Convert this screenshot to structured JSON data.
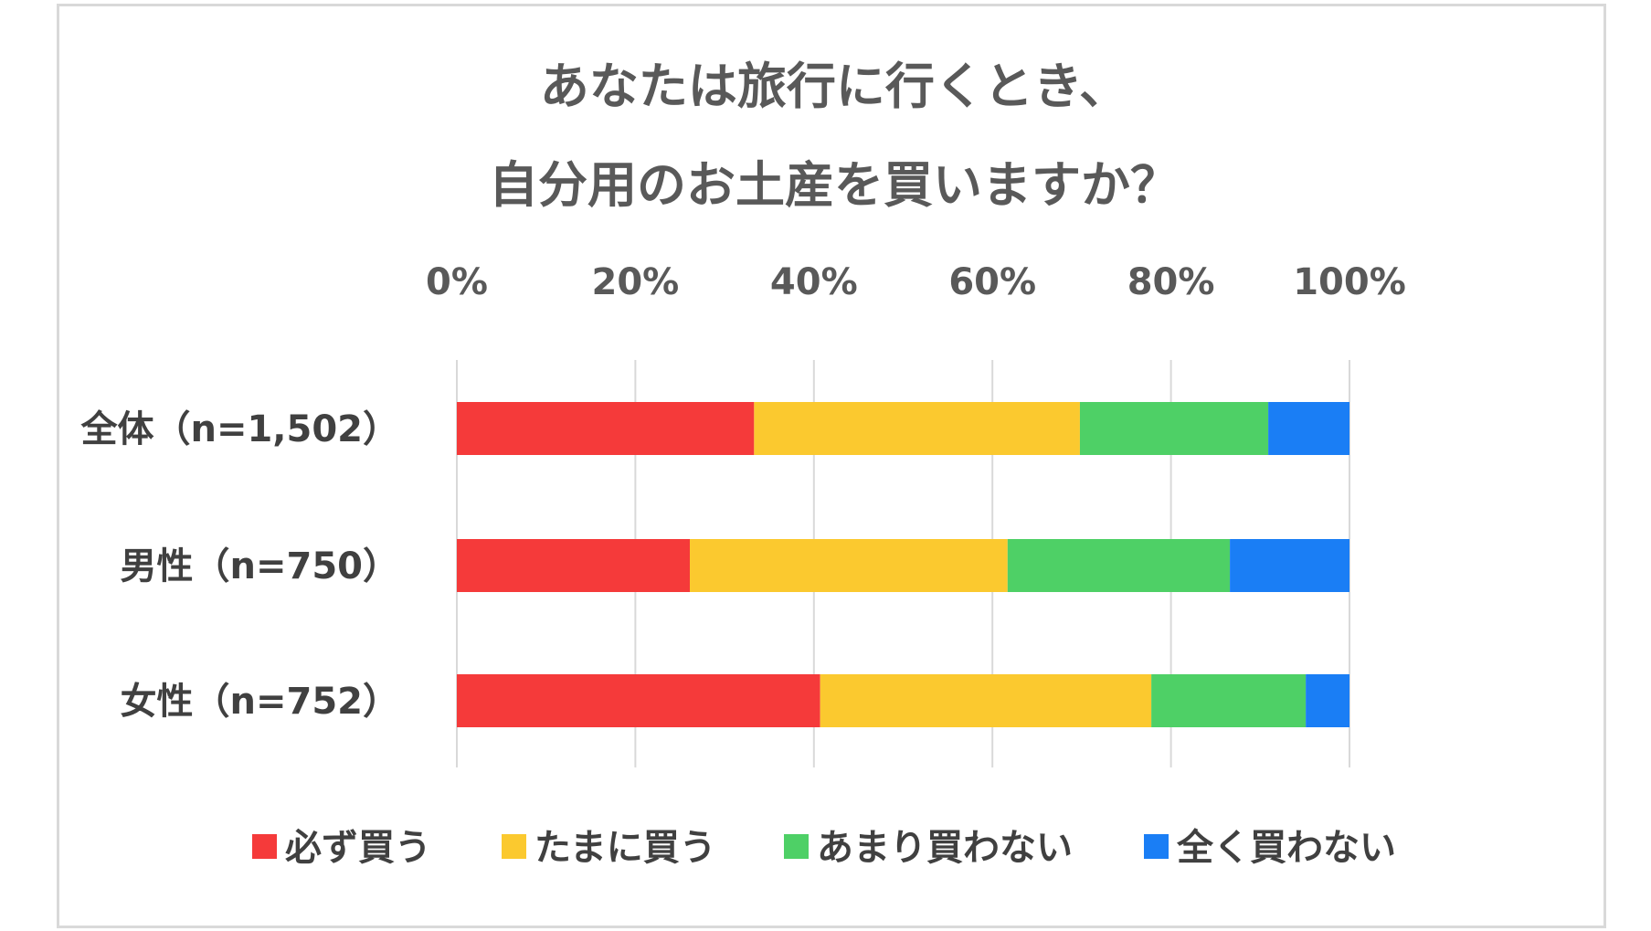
{
  "chart_data": {
    "type": "bar",
    "orientation": "horizontal",
    "stacked": true,
    "title_lines": [
      "あなたは旅行に行くとき、",
      "自分用のお土産を買いますか？"
    ],
    "x_ticks": [
      "0%",
      "20%",
      "40%",
      "60%",
      "80%",
      "100%"
    ],
    "xlim": [
      0,
      100
    ],
    "categories": [
      "全体（n=1,502）",
      "男性（n=750）",
      "女性（n=752）"
    ],
    "series": [
      {
        "name": "必ず買う",
        "color": "#f53a3a",
        "values": [
          33.3,
          26.1,
          40.7
        ]
      },
      {
        "name": "たまに買う",
        "color": "#fbc92f",
        "values": [
          36.5,
          35.6,
          37.1
        ]
      },
      {
        "name": "あまり買わない",
        "color": "#4ed066",
        "values": [
          21.1,
          24.9,
          17.3
        ]
      },
      {
        "name": "全く買わない",
        "color": "#1a7ef5",
        "values": [
          9.1,
          13.4,
          4.9
        ]
      }
    ],
    "grid": true,
    "legend_position": "bottom"
  }
}
